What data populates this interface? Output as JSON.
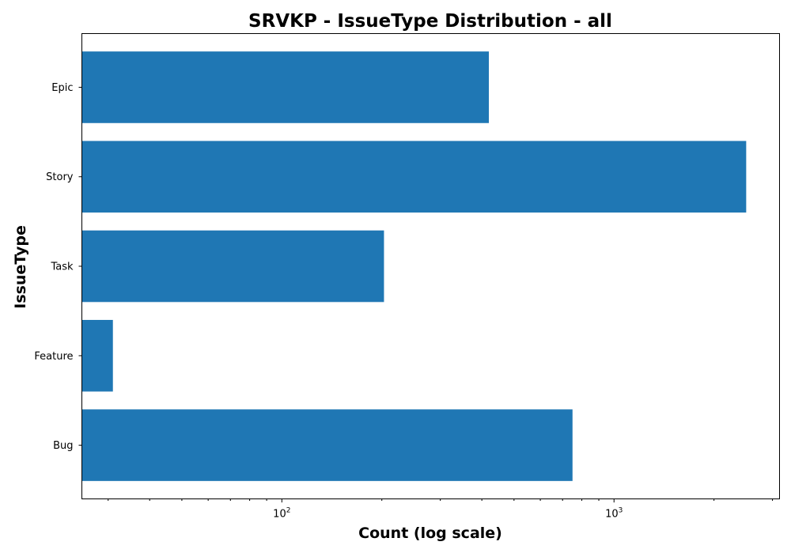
{
  "chart_data": {
    "type": "bar",
    "orientation": "horizontal",
    "title": "SRVKP - IssueType Distribution - all",
    "xlabel": "Count (log scale)",
    "ylabel": "IssueType",
    "x_scale": "log",
    "xlim": [
      25,
      3150
    ],
    "categories": [
      "Epic",
      "Story",
      "Task",
      "Feature",
      "Bug"
    ],
    "values": [
      420,
      2500,
      203,
      31,
      750
    ],
    "major_ticks": [
      {
        "base": "10",
        "exp": "2",
        "value": 100
      },
      {
        "base": "10",
        "exp": "3",
        "value": 1000
      }
    ],
    "minor_ticks": [
      30,
      40,
      50,
      60,
      70,
      80,
      90,
      200,
      300,
      400,
      500,
      600,
      700,
      800,
      900,
      2000,
      3000
    ],
    "bar_color": "#1f77b4",
    "grid": false,
    "legend": "none"
  }
}
